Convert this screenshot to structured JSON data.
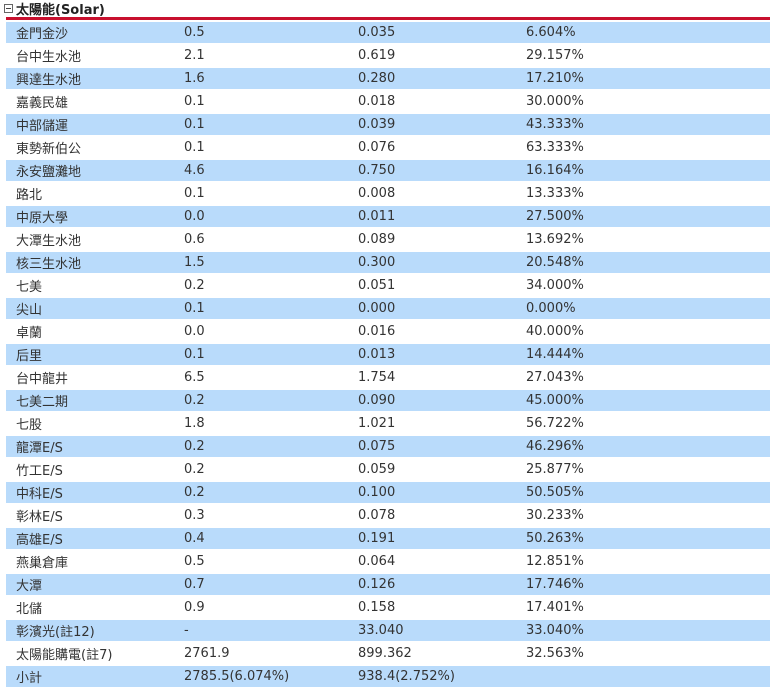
{
  "section": {
    "title": "太陽能(Solar)"
  },
  "colors": {
    "accent_rule": "#c8102e",
    "alt_row": "#b9dbfb"
  },
  "rows": [
    {
      "name": "金門金沙",
      "capacity": "0.5",
      "generation": "0.035",
      "ratio": "6.604%"
    },
    {
      "name": "台中生水池",
      "capacity": "2.1",
      "generation": "0.619",
      "ratio": "29.157%"
    },
    {
      "name": "興達生水池",
      "capacity": "1.6",
      "generation": "0.280",
      "ratio": "17.210%"
    },
    {
      "name": "嘉義民雄",
      "capacity": "0.1",
      "generation": "0.018",
      "ratio": "30.000%"
    },
    {
      "name": "中部儲運",
      "capacity": "0.1",
      "generation": "0.039",
      "ratio": "43.333%"
    },
    {
      "name": "東勢新伯公",
      "capacity": "0.1",
      "generation": "0.076",
      "ratio": "63.333%"
    },
    {
      "name": "永安鹽灘地",
      "capacity": "4.6",
      "generation": "0.750",
      "ratio": "16.164%"
    },
    {
      "name": "路北",
      "capacity": "0.1",
      "generation": "0.008",
      "ratio": "13.333%"
    },
    {
      "name": "中原大學",
      "capacity": "0.0",
      "generation": "0.011",
      "ratio": "27.500%"
    },
    {
      "name": "大潭生水池",
      "capacity": "0.6",
      "generation": "0.089",
      "ratio": "13.692%"
    },
    {
      "name": "核三生水池",
      "capacity": "1.5",
      "generation": "0.300",
      "ratio": "20.548%"
    },
    {
      "name": "七美",
      "capacity": "0.2",
      "generation": "0.051",
      "ratio": "34.000%"
    },
    {
      "name": "尖山",
      "capacity": "0.1",
      "generation": "0.000",
      "ratio": "0.000%"
    },
    {
      "name": "卓蘭",
      "capacity": "0.0",
      "generation": "0.016",
      "ratio": "40.000%"
    },
    {
      "name": "后里",
      "capacity": "0.1",
      "generation": "0.013",
      "ratio": "14.444%"
    },
    {
      "name": "台中龍井",
      "capacity": "6.5",
      "generation": "1.754",
      "ratio": "27.043%"
    },
    {
      "name": "七美二期",
      "capacity": "0.2",
      "generation": "0.090",
      "ratio": "45.000%"
    },
    {
      "name": "七股",
      "capacity": "1.8",
      "generation": "1.021",
      "ratio": "56.722%"
    },
    {
      "name": "龍潭E/S",
      "capacity": "0.2",
      "generation": "0.075",
      "ratio": "46.296%"
    },
    {
      "name": "竹工E/S",
      "capacity": "0.2",
      "generation": "0.059",
      "ratio": "25.877%"
    },
    {
      "name": "中科E/S",
      "capacity": "0.2",
      "generation": "0.100",
      "ratio": "50.505%"
    },
    {
      "name": "彰林E/S",
      "capacity": "0.3",
      "generation": "0.078",
      "ratio": "30.233%"
    },
    {
      "name": "高雄E/S",
      "capacity": "0.4",
      "generation": "0.191",
      "ratio": "50.263%"
    },
    {
      "name": "燕巢倉庫",
      "capacity": "0.5",
      "generation": "0.064",
      "ratio": "12.851%"
    },
    {
      "name": "大潭",
      "capacity": "0.7",
      "generation": "0.126",
      "ratio": "17.746%"
    },
    {
      "name": "北儲",
      "capacity": "0.9",
      "generation": "0.158",
      "ratio": "17.401%"
    },
    {
      "name": "彰濱光(註12)",
      "capacity": "-",
      "generation": "33.040",
      "ratio": "33.040%"
    },
    {
      "name": "太陽能購電(註7)",
      "capacity": "2761.9",
      "generation": "899.362",
      "ratio": "32.563%"
    },
    {
      "name": "小計",
      "capacity": "2785.5(6.074%)",
      "generation": "938.4(2.752%)",
      "ratio": ""
    }
  ]
}
